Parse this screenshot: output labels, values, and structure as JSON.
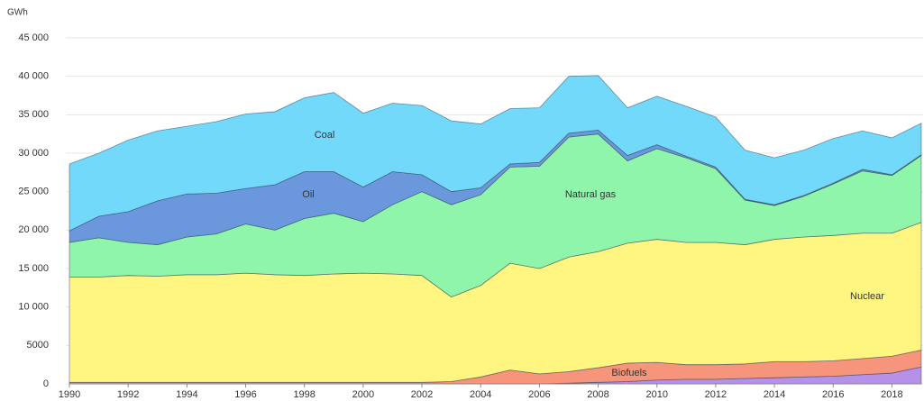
{
  "chart_data": {
    "type": "stacked_area",
    "y_label": "GWh",
    "x": [
      1990,
      1991,
      1992,
      1993,
      1994,
      1995,
      1996,
      1997,
      1998,
      1999,
      2000,
      2001,
      2002,
      2003,
      2004,
      2005,
      2006,
      2007,
      2008,
      2009,
      2010,
      2011,
      2012,
      2013,
      2014,
      2015,
      2016,
      2017,
      2018,
      2019
    ],
    "xlim": [
      1990,
      2019
    ],
    "xticks": [
      1990,
      1992,
      1994,
      1996,
      1998,
      2000,
      2002,
      2004,
      2006,
      2008,
      2010,
      2012,
      2014,
      2016,
      2018
    ],
    "ylim": [
      0,
      45000
    ],
    "yticks": [
      0,
      5000,
      {
        "value": 10000,
        "label": "10 000"
      },
      {
        "value": 15000,
        "label": "15 000"
      },
      {
        "value": 20000,
        "label": "20 000"
      },
      {
        "value": 25000,
        "label": "25 000"
      },
      {
        "value": 30000,
        "label": "30 000"
      },
      {
        "value": 35000,
        "label": "35 000"
      },
      {
        "value": 40000,
        "label": "40 000"
      },
      {
        "value": 45000,
        "label": "45 000"
      }
    ],
    "grid": true,
    "series": [
      {
        "color": "#b592e8",
        "values": [
          0,
          0,
          0,
          0,
          0,
          0,
          0,
          0,
          0,
          0,
          0,
          0,
          0,
          0,
          0,
          0,
          0,
          100,
          200,
          300,
          500,
          600,
          600,
          700,
          800,
          900,
          1000,
          1200,
          1400,
          2200
        ]
      },
      {
        "name": "Biofuels",
        "color": "#f6947c",
        "values": [
          200,
          200,
          200,
          200,
          200,
          200,
          200,
          200,
          200,
          200,
          200,
          200,
          200,
          300,
          900,
          1800,
          1300,
          1500,
          1900,
          2400,
          2300,
          1900,
          1900,
          1900,
          2100,
          2000,
          2000,
          2100,
          2200,
          2200
        ]
      },
      {
        "name": "Nuclear",
        "color": "#fff681",
        "values": [
          13700,
          13700,
          13900,
          13800,
          14000,
          14000,
          14200,
          14000,
          13900,
          14100,
          14200,
          14100,
          13900,
          11000,
          11900,
          13900,
          13700,
          14900,
          15100,
          15600,
          16000,
          15900,
          15900,
          15500,
          15900,
          16200,
          16300,
          16300,
          16000,
          16600
        ]
      },
      {
        "name": "Natural gas",
        "color": "#8ef5aa",
        "values": [
          4500,
          5100,
          4300,
          4100,
          4900,
          5300,
          6400,
          5800,
          7400,
          7900,
          6700,
          9000,
          10900,
          12000,
          11800,
          12500,
          13300,
          15600,
          15300,
          10700,
          11800,
          11000,
          9600,
          5800,
          4400,
          5300,
          6700,
          8100,
          7500,
          8700
        ]
      },
      {
        "name": "Oil",
        "color": "#6b98dd",
        "values": [
          1500,
          2800,
          4000,
          5700,
          5600,
          5300,
          4600,
          5900,
          6100,
          5400,
          4500,
          4300,
          2200,
          1700,
          900,
          400,
          500,
          500,
          500,
          700,
          500,
          200,
          200,
          100,
          100,
          100,
          100,
          200,
          100,
          100
        ]
      },
      {
        "name": "Coal",
        "color": "#73d9fb",
        "values": [
          8700,
          8200,
          9300,
          9100,
          8800,
          9300,
          9700,
          9500,
          9600,
          10300,
          9600,
          8900,
          9000,
          9200,
          8300,
          7200,
          7100,
          7400,
          7100,
          6200,
          6300,
          6500,
          6500,
          6400,
          6100,
          5900,
          5800,
          5000,
          4800,
          4100
        ]
      }
    ]
  }
}
